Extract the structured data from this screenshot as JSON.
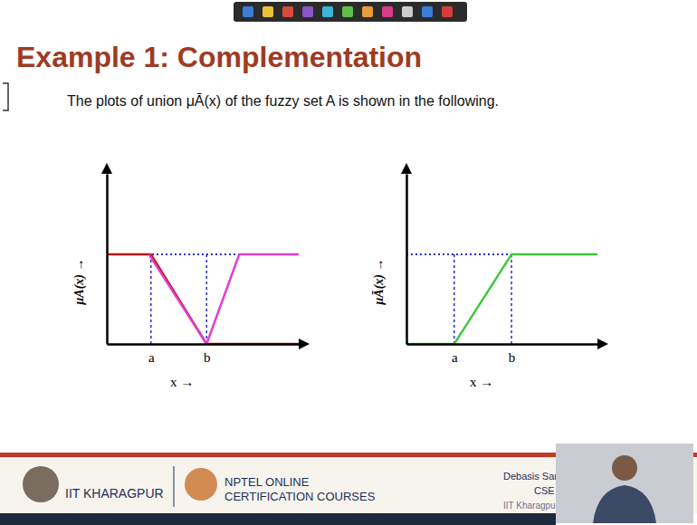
{
  "slide": {
    "title": "Example 1: Complementation",
    "text": "The plots of union μĀ(x) of the fuzzy set A is shown in the following.",
    "footer": {
      "institute": "IIT KHARAGPUR",
      "course": "NPTEL ONLINE CERTIFICATION COURSES",
      "presenter": "Debasis Samanta",
      "department": "CSE",
      "presenter_institute": "IIT Kharagpur"
    }
  },
  "chart_data": [
    {
      "type": "line",
      "xlabel": "x  →",
      "ylabel": "μA(x)  →",
      "xlim": [
        0,
        10
      ],
      "ylim": [
        0,
        1.9
      ],
      "xticks": [
        {
          "value": 2.3,
          "label": "a"
        },
        {
          "value": 5.2,
          "label": "b"
        }
      ],
      "yticks": [],
      "tick_labels": "x",
      "dotted_level": 1,
      "series": [
        {
          "color": "#c0140c",
          "line_style": "solid",
          "x": [
            0,
            2.3,
            5.2,
            10
          ],
          "values": [
            1,
            1,
            0,
            0
          ]
        },
        {
          "color": "#e23cd2",
          "line_style": "solid",
          "x": [
            2.2,
            5.2,
            6.9,
            10
          ],
          "values": [
            1,
            0,
            1,
            1
          ]
        }
      ]
    },
    {
      "type": "line",
      "xlabel": "x  →",
      "ylabel": "μĀ(x)  →",
      "xlim": [
        0,
        10
      ],
      "ylim": [
        0,
        1.9
      ],
      "xticks": [
        {
          "value": 2.5,
          "label": "a"
        },
        {
          "value": 5.5,
          "label": "b"
        }
      ],
      "yticks": [],
      "tick_labels": "x",
      "dotted_level": 1,
      "series": [
        {
          "color": "#3cc83c",
          "line_style": "solid",
          "x": [
            0,
            2.5,
            5.5,
            10
          ],
          "values": [
            0,
            0,
            1,
            1
          ]
        }
      ]
    }
  ]
}
